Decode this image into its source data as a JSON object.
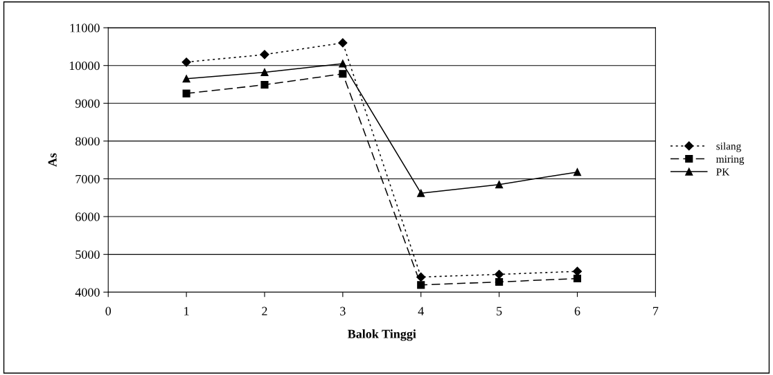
{
  "chart_data": {
    "type": "line",
    "xlabel": "Balok Tinggi",
    "ylabel": "As",
    "x": [
      1,
      2,
      3,
      4,
      5,
      6
    ],
    "series": [
      {
        "name": "silang",
        "color": "#000000",
        "values": [
          10090,
          10290,
          10600,
          4400,
          4470,
          4550
        ],
        "marker": "diamond",
        "line_style": "dotted"
      },
      {
        "name": "miring",
        "color": "#000000",
        "values": [
          9260,
          9490,
          9780,
          4190,
          4270,
          4360
        ],
        "marker": "square",
        "line_style": "dashed"
      },
      {
        "name": "PK",
        "color": "#000000",
        "values": [
          9650,
          9820,
          10050,
          6620,
          6850,
          7180
        ],
        "marker": "triangle",
        "line_style": "solid"
      }
    ],
    "xlim": [
      0,
      7
    ],
    "xticks": [
      0,
      1,
      2,
      3,
      4,
      5,
      6,
      7
    ],
    "ylim": [
      4000,
      11000
    ],
    "yticks": [
      4000,
      5000,
      6000,
      7000,
      8000,
      9000,
      10000,
      11000
    ],
    "grid": "y",
    "legend": "right"
  }
}
